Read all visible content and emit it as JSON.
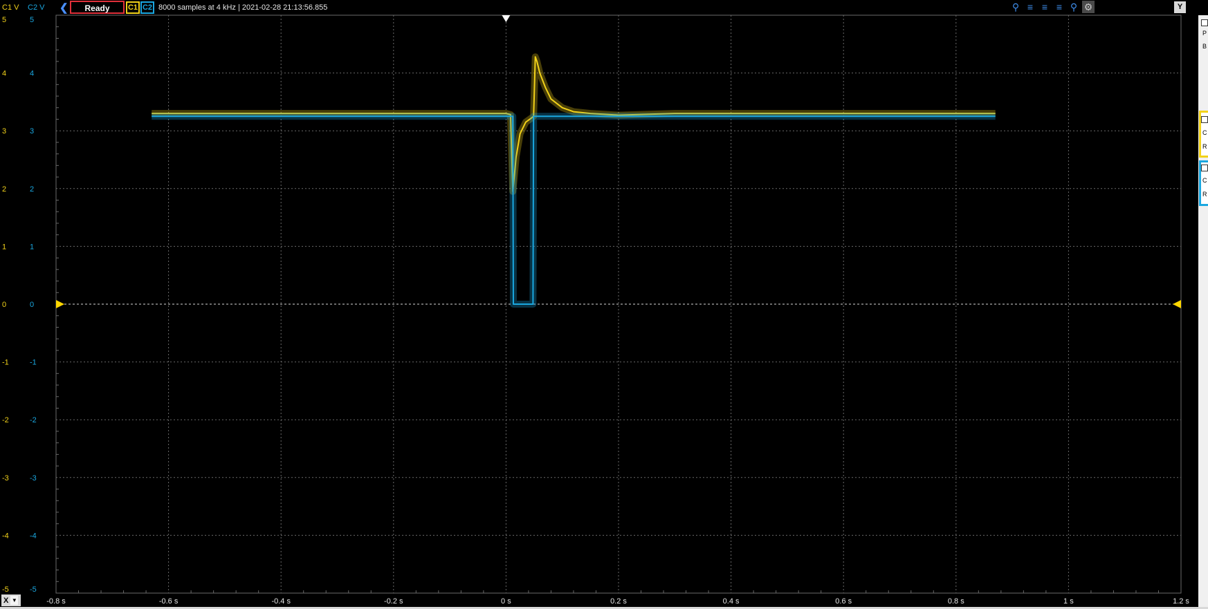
{
  "header": {
    "c1_unit": "C1 V",
    "c2_unit": "C2 V",
    "status": "Ready",
    "c1_button": "C1",
    "c2_button": "C2",
    "info": "8000 samples at 4 kHz | 2021-02-28 21:13:56.855",
    "y_button": "Y",
    "back_icon": "chevron-left-icon"
  },
  "toolbar": {
    "icons": [
      "zoom-in-icon",
      "fit-icon",
      "align-icon",
      "stack-icon",
      "zoom-icon",
      "settings-icon"
    ]
  },
  "footer": {
    "x_button": "X",
    "x_dropdown_icon": "chevron-down-icon"
  },
  "side_panel": {
    "letters": [
      "P",
      "B",
      "C",
      "R",
      "C",
      "R"
    ]
  },
  "colors": {
    "c1": "#f2d21a",
    "c2": "#1aa7e0",
    "grid": "#6a6a6a",
    "status_border": "#e0303a",
    "trigger_marker": "#ffd700"
  },
  "chart_data": {
    "type": "line",
    "title": "",
    "xlabel": "",
    "ylabel": "",
    "xlim": [
      -0.8,
      1.2
    ],
    "ylim": [
      -5,
      5
    ],
    "x_ticks": [
      "-0.8 s",
      "-0.6 s",
      "-0.4 s",
      "-0.2 s",
      "0 s",
      "0.2 s",
      "0.4 s",
      "0.6 s",
      "0.8 s",
      "1 s",
      "1.2 s"
    ],
    "y_ticks_c1": [
      "5",
      "4",
      "3",
      "2",
      "1",
      "0",
      "-1",
      "-2",
      "-3",
      "-4",
      "-5"
    ],
    "y_ticks_c2": [
      "5",
      "4",
      "3",
      "2",
      "1",
      "0",
      "-1",
      "-2",
      "-3",
      "-4",
      "-5"
    ],
    "series": [
      {
        "key": "c1",
        "x": [
          -0.63,
          0.0,
          0.008,
          0.012,
          0.018,
          0.025,
          0.035,
          0.045,
          0.049,
          0.05,
          0.052,
          0.055,
          0.06,
          0.07,
          0.08,
          0.1,
          0.12,
          0.15,
          0.2,
          0.3,
          0.5,
          0.87
        ],
        "y": [
          3.3,
          3.3,
          3.28,
          1.95,
          2.55,
          2.95,
          3.15,
          3.22,
          3.25,
          3.6,
          4.28,
          4.2,
          4.0,
          3.75,
          3.55,
          3.4,
          3.33,
          3.3,
          3.27,
          3.3,
          3.3,
          3.3
        ]
      },
      {
        "key": "c2",
        "x": [
          -0.63,
          0.0,
          0.012,
          0.013,
          0.048,
          0.049,
          0.2,
          0.5,
          0.87
        ],
        "y": [
          3.25,
          3.25,
          3.25,
          0.0,
          0.0,
          3.25,
          3.25,
          3.25,
          3.25
        ]
      }
    ],
    "trigger": {
      "time": 0.0,
      "level": 0.0
    },
    "grid": true
  }
}
